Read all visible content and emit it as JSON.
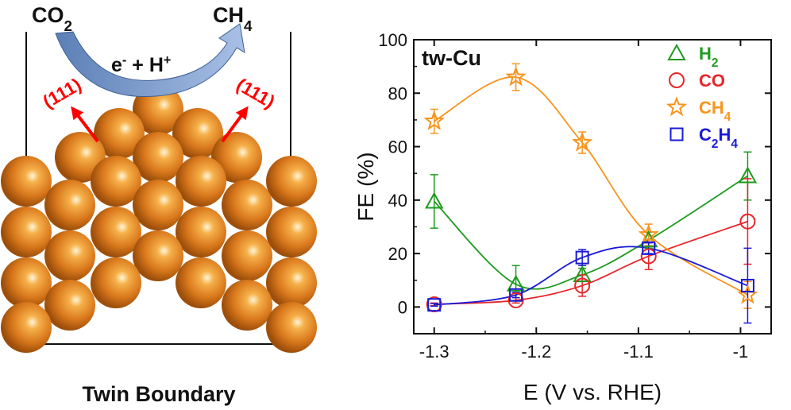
{
  "scheme": {
    "reactant": "CO2",
    "product": "CH4",
    "process": "e- + H+",
    "facet_left": "(111)",
    "facet_right": "(111)",
    "caption": "Twin Boundary",
    "atom_color": "#d9781c",
    "arrow_color": "#ff0000"
  },
  "chart_data": {
    "type": "line",
    "title": "tw-Cu",
    "xlabel": "E (V vs. RHE)",
    "ylabel": "FE (%)",
    "xlim": [
      -1.32,
      -0.97
    ],
    "ylim": [
      -10,
      100
    ],
    "xticks": [
      -1.3,
      -1.2,
      -1.1,
      -1.0
    ],
    "xtick_labels": [
      "-1.3",
      "-1.2",
      "-1.1",
      "-1"
    ],
    "yticks": [
      0,
      20,
      40,
      60,
      80,
      100
    ],
    "legend_position": "top-right",
    "x": [
      -1.3,
      -1.22,
      -1.155,
      -1.09,
      -0.993
    ],
    "series": [
      {
        "name": "H2",
        "marker": "triangle",
        "color": "#1e9b1e",
        "values": [
          39.5,
          8.5,
          12,
          25,
          49
        ],
        "errors": [
          10,
          7,
          2.5,
          3,
          9
        ]
      },
      {
        "name": "CO",
        "marker": "circle",
        "color": "#e8262a",
        "values": [
          1,
          2.5,
          8,
          19,
          32
        ],
        "errors": [
          0.5,
          1,
          4,
          5,
          16
        ]
      },
      {
        "name": "CH4",
        "marker": "star",
        "color": "#f7941d",
        "values": [
          69.5,
          86,
          61.5,
          27,
          4.5
        ],
        "errors": [
          4.5,
          5,
          4,
          4,
          5
        ]
      },
      {
        "name": "C2H4",
        "marker": "square",
        "color": "#1a1ad6",
        "values": [
          0.8,
          4.5,
          18.5,
          22,
          8
        ],
        "errors": [
          0.5,
          1,
          3,
          2,
          14
        ]
      }
    ]
  }
}
